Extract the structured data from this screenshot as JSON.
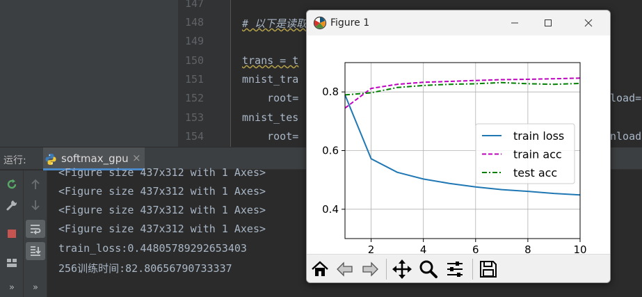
{
  "editor": {
    "line_numbers": [
      "147",
      "148",
      "149",
      "150",
      "151",
      "152",
      "153",
      "154"
    ],
    "lines": [
      {
        "n": "147",
        "text": ""
      },
      {
        "n": "148",
        "text": "# 以下是读取"
      },
      {
        "n": "149",
        "text": ""
      },
      {
        "n": "150",
        "text": "trans = t"
      },
      {
        "n": "151",
        "text": "mnist_tra"
      },
      {
        "n": "152",
        "text": "    root="
      },
      {
        "n": "153",
        "text": "mnist_tes"
      },
      {
        "n": "154",
        "text": "    root="
      }
    ],
    "right_fragments": [
      "load=",
      "nload"
    ]
  },
  "run_panel": {
    "label": "运行:",
    "tab_name": "softmax_gpu",
    "tab_close": "×",
    "console_lines": [
      "<Figure size 437x312 with 1 Axes>",
      "<Figure size 437x312 with 1 Axes>",
      "<Figure size 437x312 with 1 Axes>",
      "<Figure size 437x312 with 1 Axes>",
      "train_loss:0.4480578929265340З",
      "256训练时间:82.80656790733337"
    ],
    "left_toolbar_icons": [
      "rerun-icon",
      "wrench-icon",
      "stop-icon",
      "layout-icon",
      "more-icon"
    ],
    "right_toolbar_icons": [
      "up-arrow-icon",
      "down-arrow-icon",
      "soft-wrap-icon",
      "scroll-to-end-icon",
      "more-icon"
    ],
    "more_glyph": "»"
  },
  "figure_window": {
    "title": "Figure 1",
    "toolbar_icons": [
      "home-icon",
      "back-icon",
      "forward-icon",
      "pan-icon",
      "zoom-icon",
      "configure-subplots-icon",
      "save-icon"
    ]
  },
  "chart_data": {
    "type": "line",
    "title": "",
    "xlabel": "",
    "ylabel": "",
    "xlim": [
      1,
      10
    ],
    "ylim": [
      0.3,
      0.9
    ],
    "xticks": [
      2,
      4,
      6,
      8,
      10
    ],
    "yticks": [
      0.4,
      0.6,
      0.8
    ],
    "grid": true,
    "legend_position": "center-right",
    "x": [
      1,
      2,
      3,
      4,
      5,
      6,
      7,
      8,
      9,
      10
    ],
    "series": [
      {
        "name": "train loss",
        "color": "#1f77b4",
        "style": "solid",
        "values": [
          0.79,
          0.572,
          0.526,
          0.503,
          0.488,
          0.476,
          0.467,
          0.461,
          0.454,
          0.449
        ]
      },
      {
        "name": "train acc",
        "color": "#bf00bf",
        "style": "dashed",
        "values": [
          0.745,
          0.812,
          0.826,
          0.833,
          0.836,
          0.839,
          0.842,
          0.843,
          0.845,
          0.847
        ]
      },
      {
        "name": "test acc",
        "color": "#008000",
        "style": "dashdot",
        "values": [
          0.79,
          0.797,
          0.815,
          0.822,
          0.826,
          0.828,
          0.832,
          0.828,
          0.826,
          0.829
        ]
      }
    ]
  }
}
